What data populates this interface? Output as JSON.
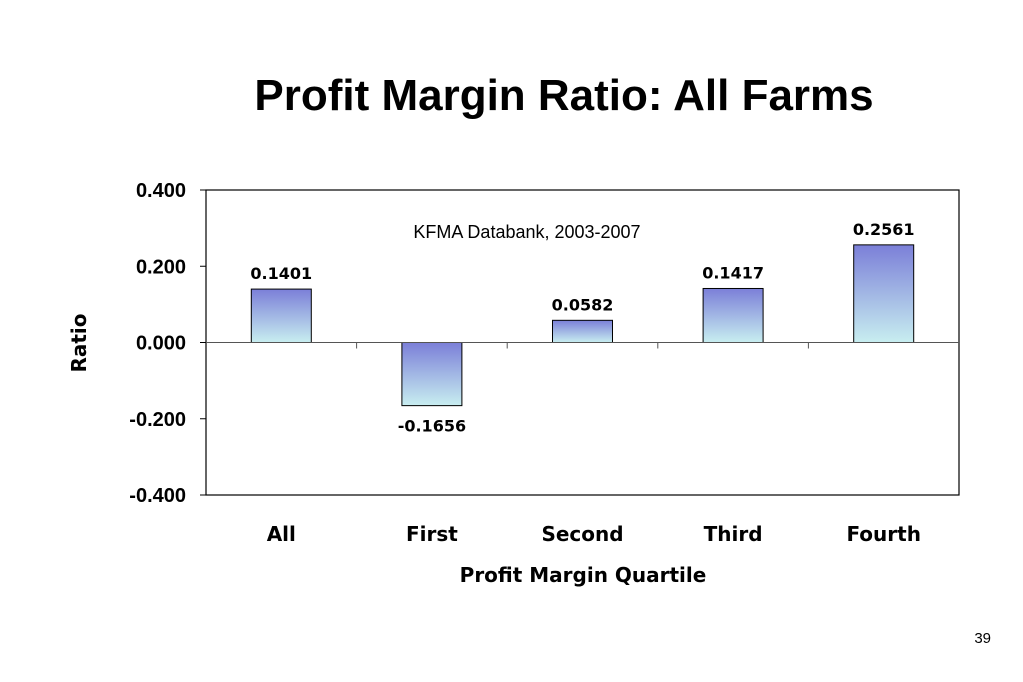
{
  "slide": {
    "title": "Profit Margin Ratio: All Farms",
    "page_number": "39"
  },
  "chart_data": {
    "type": "bar",
    "subtitle": "KFMA Databank, 2003-2007",
    "xlabel": "Profit Margin Quartile",
    "ylabel": "Ratio",
    "categories": [
      "All",
      "First",
      "Second",
      "Third",
      "Fourth"
    ],
    "values": [
      0.1401,
      -0.1656,
      0.0582,
      0.1417,
      0.2561
    ],
    "data_labels": [
      "0.1401",
      "-0.1656",
      "0.0582",
      "0.1417",
      "0.2561"
    ],
    "ylim": [
      -0.4,
      0.4
    ],
    "yticks": [
      0.4,
      0.2,
      0.0,
      -0.2,
      -0.4
    ],
    "ytick_labels": [
      "0.400",
      "0.200",
      "0.000",
      "-0.200",
      "-0.400"
    ],
    "grid": false,
    "legend": "none",
    "colors": {
      "bar_top": "#7b7fd8",
      "bar_bottom": "#c8eef0",
      "bar_stroke": "#000000",
      "axis": "#000000"
    }
  }
}
